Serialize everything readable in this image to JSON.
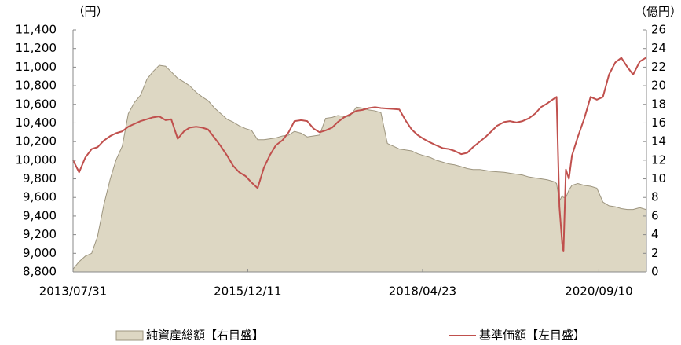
{
  "chart_data": {
    "type": "combo",
    "y_label": "（円）",
    "y2_label": "（億円）",
    "xlim": [
      "2013/07/31",
      "2021/05/03"
    ],
    "xticks": [
      "2013/07/31",
      "2015/12/11",
      "2018/04/23",
      "2020/09/10"
    ],
    "ylim": [
      8800,
      11400
    ],
    "yticks": [
      {
        "value": 8800,
        "label": "8,800"
      },
      {
        "value": 9000,
        "label": "9,000"
      },
      {
        "value": 9200,
        "label": "9,200"
      },
      {
        "value": 9400,
        "label": "9,400"
      },
      {
        "value": 9600,
        "label": "9,600"
      },
      {
        "value": 9800,
        "label": "9,800"
      },
      {
        "value": 10000,
        "label": "10,000"
      },
      {
        "value": 10200,
        "label": "10,200"
      },
      {
        "value": 10400,
        "label": "10,400"
      },
      {
        "value": 10600,
        "label": "10,600"
      },
      {
        "value": 10800,
        "label": "10,800"
      },
      {
        "value": 11000,
        "label": "11,000"
      },
      {
        "value": 11200,
        "label": "11,200"
      },
      {
        "value": 11400,
        "label": "11,400"
      }
    ],
    "y2lim": [
      0,
      26
    ],
    "y2ticks": [
      0,
      2,
      4,
      6,
      8,
      10,
      12,
      14,
      16,
      18,
      20,
      22,
      24,
      26
    ],
    "x": [
      "2013/07/31",
      "2013/08/30",
      "2013/09/30",
      "2013/10/31",
      "2013/11/29",
      "2013/12/30",
      "2014/01/31",
      "2014/02/28",
      "2014/03/31",
      "2014/04/30",
      "2014/05/30",
      "2014/06/30",
      "2014/07/31",
      "2014/08/29",
      "2014/09/30",
      "2014/10/31",
      "2014/11/28",
      "2014/12/30",
      "2015/01/30",
      "2015/02/27",
      "2015/03/31",
      "2015/04/30",
      "2015/05/29",
      "2015/06/30",
      "2015/07/31",
      "2015/08/31",
      "2015/09/30",
      "2015/10/30",
      "2015/11/30",
      "2015/12/30",
      "2016/01/29",
      "2016/02/29",
      "2016/03/31",
      "2016/04/28",
      "2016/05/31",
      "2016/06/30",
      "2016/07/29",
      "2016/08/31",
      "2016/09/30",
      "2016/10/31",
      "2016/11/30",
      "2016/12/30",
      "2017/01/31",
      "2017/02/28",
      "2017/03/31",
      "2017/04/28",
      "2017/05/31",
      "2017/06/30",
      "2017/07/31",
      "2017/08/31",
      "2017/09/29",
      "2017/10/31",
      "2017/11/30",
      "2017/12/29",
      "2018/01/31",
      "2018/02/28",
      "2018/03/30",
      "2018/04/27",
      "2018/05/31",
      "2018/06/29",
      "2018/07/31",
      "2018/08/31",
      "2018/09/28",
      "2018/10/31",
      "2018/11/30",
      "2018/12/28",
      "2019/01/31",
      "2019/02/28",
      "2019/03/29",
      "2019/04/26",
      "2019/05/31",
      "2019/06/28",
      "2019/07/31",
      "2019/08/30",
      "2019/09/30",
      "2019/10/31",
      "2019/11/29",
      "2019/12/30",
      "2020/01/31",
      "2020/02/14",
      "2020/02/28",
      "2020/03/13",
      "2020/03/19",
      "2020/03/31",
      "2020/04/15",
      "2020/04/30",
      "2020/05/29",
      "2020/06/30",
      "2020/07/31",
      "2020/08/31",
      "2020/09/30",
      "2020/10/30",
      "2020/11/30",
      "2020/12/30",
      "2021/01/29",
      "2021/02/26",
      "2021/03/31",
      "2021/04/30"
    ],
    "series": [
      {
        "name": "純資産総額【右目盛】",
        "type": "area",
        "axis": "y2",
        "color": "#ddd7c3",
        "edge_color": "#9d957f",
        "values": [
          0.3,
          1.1,
          1.7,
          2.0,
          3.8,
          7.2,
          10,
          12,
          13.5,
          17,
          18.2,
          19,
          20.7,
          21.5,
          22.2,
          22.1,
          21.5,
          20.8,
          20.4,
          20,
          19.3,
          18.8,
          18.4,
          17.6,
          17,
          16.4,
          16.1,
          15.7,
          15.4,
          15.2,
          14.2,
          14.2,
          14.3,
          14.4,
          14.6,
          14.7,
          15.1,
          14.9,
          14.5,
          14.6,
          14.7,
          16.5,
          16.6,
          16.8,
          16.7,
          16.7,
          17.7,
          17.6,
          17.4,
          17.3,
          17.1,
          13.8,
          13.5,
          13.2,
          13.1,
          13,
          12.7,
          12.5,
          12.3,
          12,
          11.8,
          11.6,
          11.5,
          11.3,
          11.1,
          11,
          11,
          10.9,
          10.8,
          10.75,
          10.7,
          10.6,
          10.5,
          10.4,
          10.2,
          10.1,
          10,
          9.9,
          9.7,
          9.5,
          7.6,
          8.2,
          8.0,
          8.0,
          8.8,
          9.3,
          9.5,
          9.3,
          9.2,
          9.0,
          7.5,
          7.1,
          7.0,
          6.8,
          6.7,
          6.7,
          6.9,
          6.7
        ]
      },
      {
        "name": "基準価額【左目盛】",
        "type": "line",
        "axis": "y",
        "color": "#c0504d",
        "values": [
          10000,
          9870,
          10030,
          10120,
          10140,
          10210,
          10260,
          10290,
          10310,
          10360,
          10390,
          10420,
          10440,
          10460,
          10470,
          10430,
          10440,
          10230,
          10310,
          10350,
          10360,
          10350,
          10330,
          10240,
          10150,
          10050,
          9940,
          9870,
          9830,
          9760,
          9700,
          9920,
          10060,
          10160,
          10215,
          10300,
          10420,
          10430,
          10420,
          10340,
          10300,
          10320,
          10350,
          10410,
          10460,
          10490,
          10530,
          10540,
          10560,
          10570,
          10560,
          10555,
          10550,
          10545,
          10420,
          10330,
          10270,
          10230,
          10190,
          10160,
          10130,
          10120,
          10100,
          10065,
          10080,
          10140,
          10200,
          10250,
          10310,
          10370,
          10410,
          10420,
          10405,
          10420,
          10450,
          10500,
          10570,
          10610,
          10660,
          10680,
          9500,
          9100,
          9020,
          9900,
          9800,
          10050,
          10250,
          10450,
          10680,
          10650,
          10680,
          10920,
          11050,
          11100,
          11000,
          10920,
          11060,
          11100
        ]
      }
    ]
  }
}
